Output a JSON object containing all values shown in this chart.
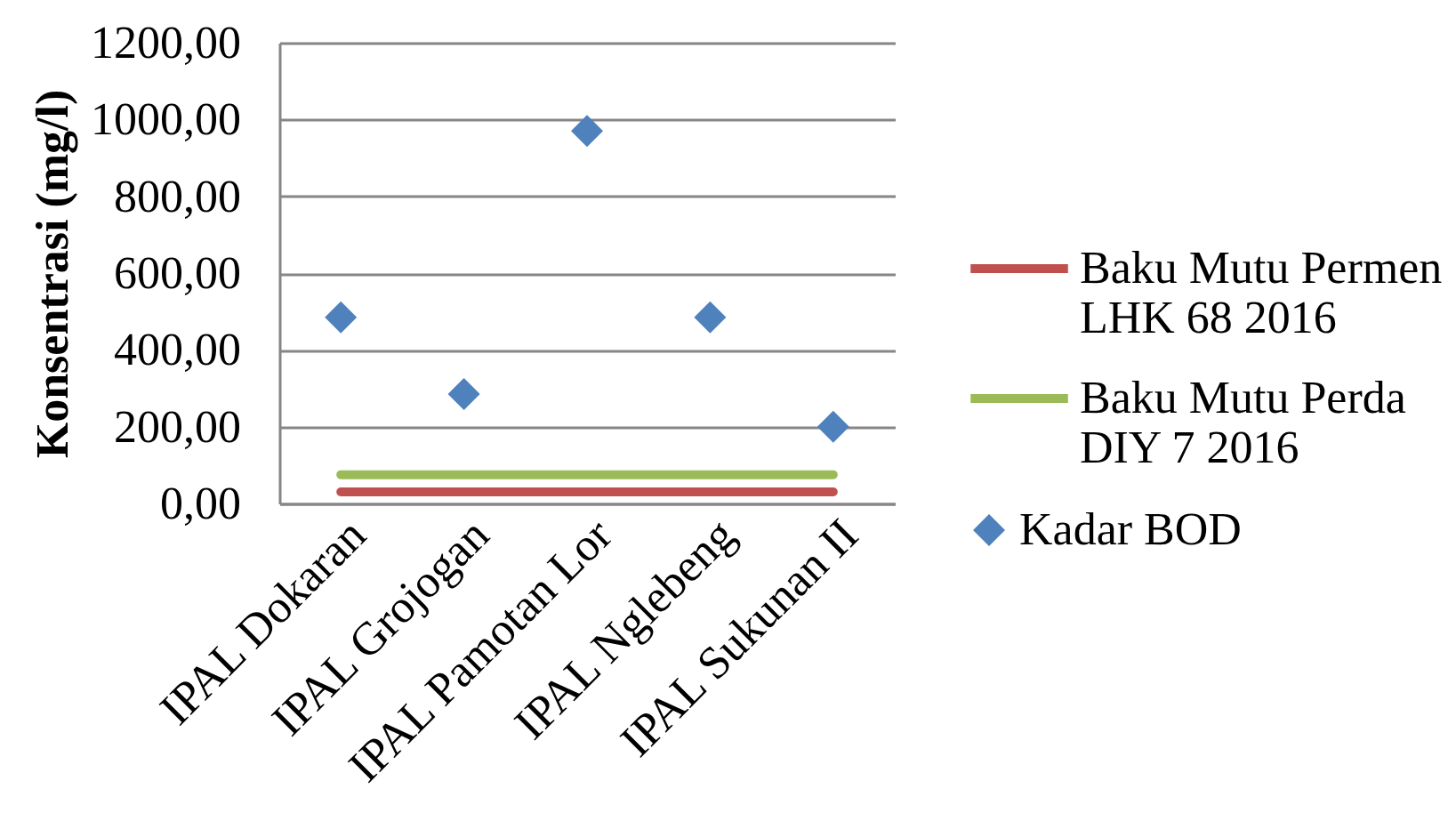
{
  "chart_data": {
    "type": "line",
    "ylabel": "Konsentrasi (mg/l)",
    "categories": [
      "IPAL Dokaran",
      "IPAL Grojogan",
      "IPAL Pamotan Lor",
      "IPAL Nglebeng",
      "IPAL Sukunan II"
    ],
    "series": [
      {
        "name": "Baku Mutu Permen LHK 68 2016",
        "marker": "none",
        "color": "#c0504d",
        "values": [
          30,
          30,
          30,
          30,
          30
        ]
      },
      {
        "name": "Baku Mutu Perda DIY 7 2016",
        "marker": "none",
        "color": "#9bbb59",
        "values": [
          75,
          75,
          75,
          75,
          75
        ]
      },
      {
        "name": "Kadar BOD",
        "type": "scatter",
        "marker": "diamond",
        "color": "#4f81bd",
        "values": [
          485,
          285,
          970,
          485,
          200
        ]
      }
    ],
    "ylim": [
      0,
      1200
    ],
    "yticks": [
      {
        "value": 0,
        "label": "0,00"
      },
      {
        "value": 200,
        "label": "200,00"
      },
      {
        "value": 400,
        "label": "400,00"
      },
      {
        "value": 600,
        "label": "600,00"
      },
      {
        "value": 800,
        "label": "800,00"
      },
      {
        "value": 1000,
        "label": "1000,00"
      },
      {
        "value": 1200,
        "label": "1200,00"
      }
    ],
    "grid": "y",
    "legend": "right"
  }
}
